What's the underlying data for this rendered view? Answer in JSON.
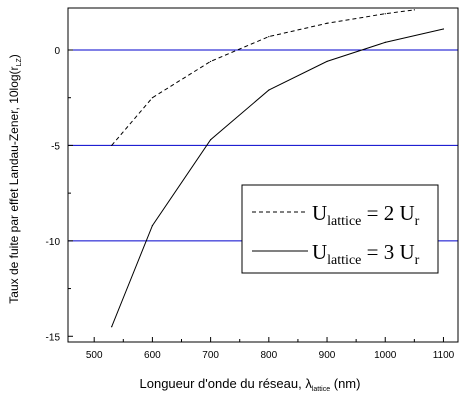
{
  "chart_data": {
    "type": "line",
    "xlabel": {
      "main": "Longueur d'onde du réseau, λ",
      "sub": "lattice",
      "unit": " (nm)"
    },
    "ylabel": {
      "main": "Taux de fuite par effet Landau-Zener, 10log(r",
      "sub": "LZ",
      "end": ")"
    },
    "xlim": [
      455,
      1125
    ],
    "ylim": [
      -15.3,
      2.2
    ],
    "x_ticks": [
      500,
      600,
      700,
      800,
      900,
      1000,
      1100
    ],
    "y_ticks": [
      0,
      -5,
      -10,
      -15
    ],
    "reference_lines": [
      {
        "y": 0,
        "color": "#0000cc"
      },
      {
        "y": -5,
        "color": "#0000cc"
      },
      {
        "y": -10,
        "color": "#0000cc"
      }
    ],
    "series": [
      {
        "name": "U_lattice = 2 U_r",
        "style": "dashed",
        "x": [
          530,
          600,
          700,
          800,
          900,
          1000,
          1050
        ],
        "y": [
          -5.0,
          -2.5,
          -0.6,
          0.7,
          1.4,
          1.9,
          2.1
        ]
      },
      {
        "name": "U_lattice = 3 U_r",
        "style": "solid",
        "x": [
          530,
          600,
          700,
          800,
          900,
          1000,
          1100
        ],
        "y": [
          -14.5,
          -9.2,
          -4.7,
          -2.1,
          -0.6,
          0.4,
          1.1
        ]
      }
    ],
    "legend": {
      "position": "center-right",
      "entries": [
        {
          "main": "U",
          "sub": "lattice",
          "eq": " = 2 U",
          "sub2": "r"
        },
        {
          "main": "U",
          "sub": "lattice",
          "eq": " = 3 U",
          "sub2": "r"
        }
      ]
    }
  }
}
